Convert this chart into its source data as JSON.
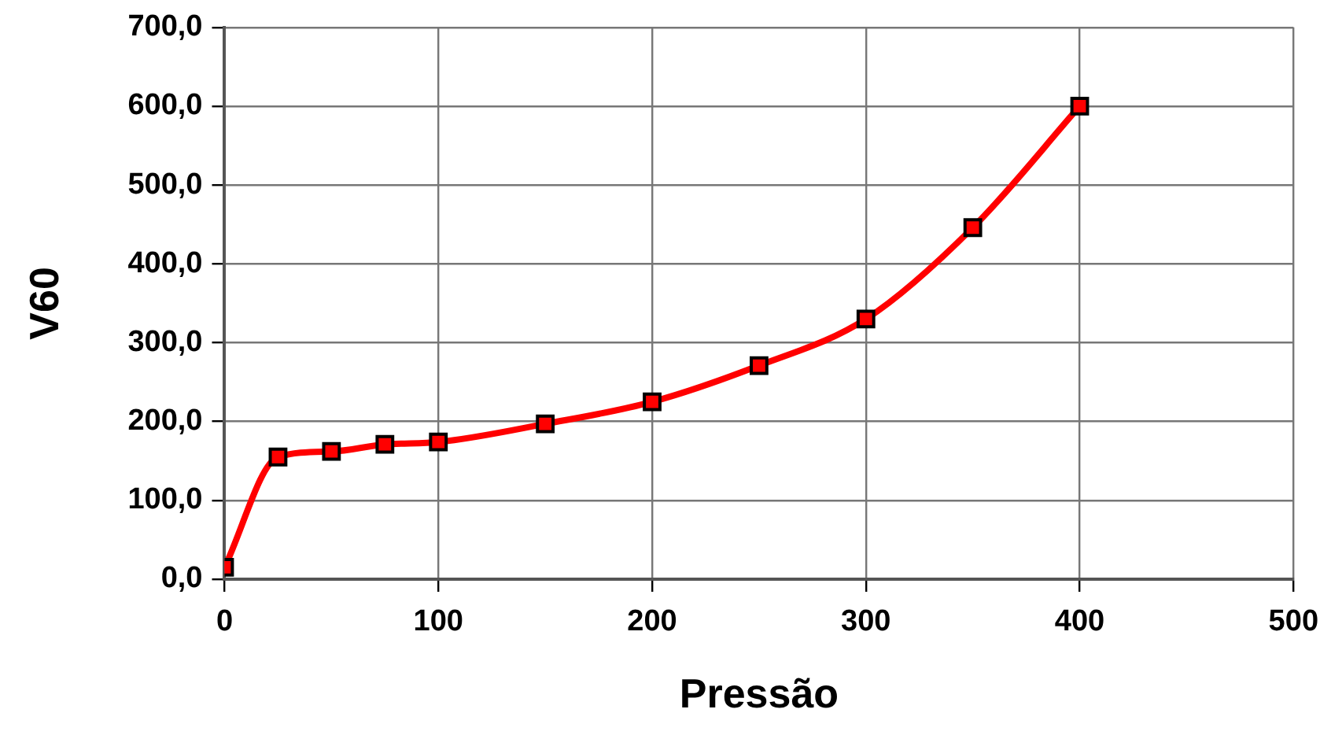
{
  "chart_data": {
    "type": "line",
    "xlabel": "Pressão",
    "ylabel": "V60",
    "x": [
      0,
      25,
      50,
      75,
      100,
      150,
      200,
      250,
      300,
      350,
      400
    ],
    "series": [
      {
        "color": "#ff0000",
        "values": [
          15,
          155,
          162,
          171,
          174,
          197,
          225,
          271,
          330,
          446,
          600
        ]
      }
    ],
    "xlim": [
      0,
      500
    ],
    "xticks": [
      0,
      100,
      200,
      300,
      400,
      500
    ],
    "ylim": [
      0,
      700
    ],
    "yticks": [
      {
        "value": 0,
        "label": "0,0"
      },
      {
        "value": 100,
        "label": "100,0"
      },
      {
        "value": 200,
        "label": "200,0"
      },
      {
        "value": 300,
        "label": "300,0"
      },
      {
        "value": 400,
        "label": "400,0"
      },
      {
        "value": 500,
        "label": "500,0"
      },
      {
        "value": 600,
        "label": "600,0"
      },
      {
        "value": 700,
        "label": "700,0"
      }
    ],
    "grid": true,
    "marker": "square",
    "line_style": "solid",
    "legend": false
  }
}
